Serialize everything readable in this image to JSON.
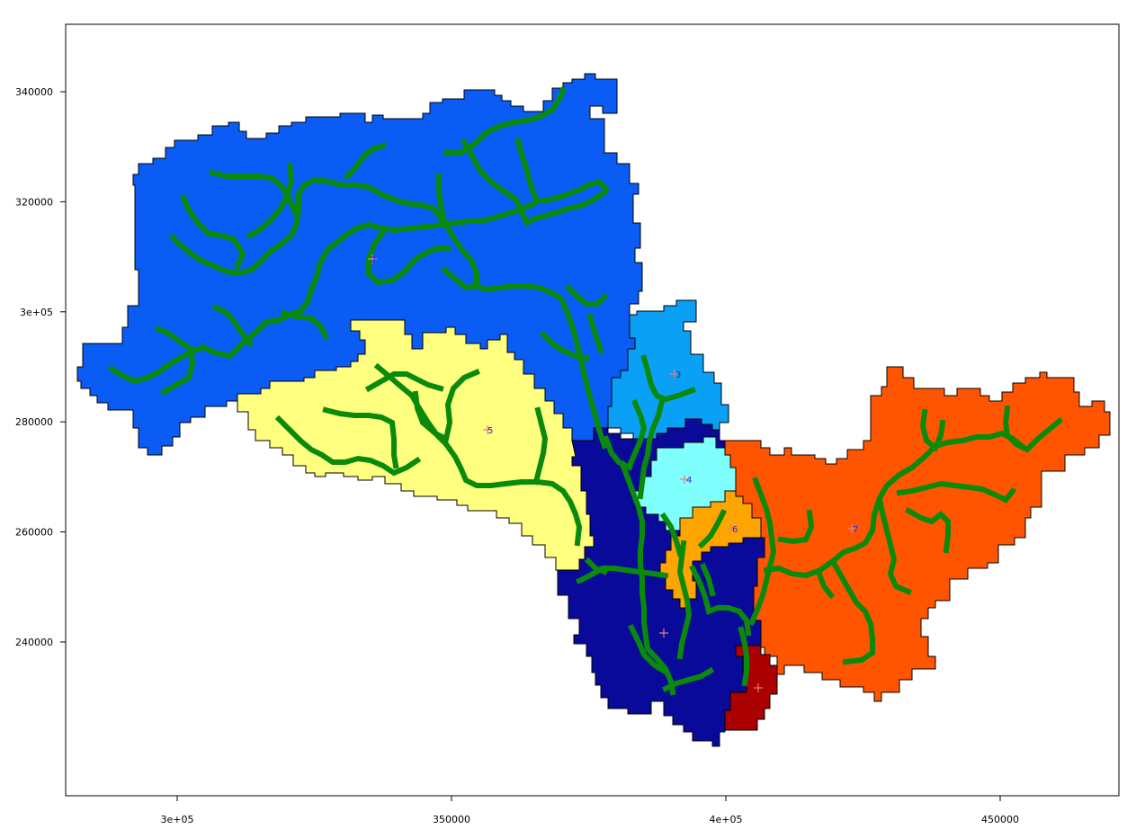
{
  "map": {
    "x_ticks": [
      "3e+05",
      "350000",
      "4e+05",
      "450000"
    ],
    "y_ticks": [
      "340000",
      "320000",
      "3e+05",
      "280000",
      "260000",
      "240000"
    ],
    "x_tick_values": [
      300000,
      350000,
      400000,
      450000
    ],
    "y_tick_values": [
      340000,
      320000,
      300000,
      280000,
      260000,
      240000
    ],
    "xlim": [
      280000,
      455000
    ],
    "ylim": [
      218000,
      352000
    ],
    "river_color": "#0a8a0a",
    "marker_color": "#e88080",
    "label_color": "#2a2ad8"
  },
  "basins": [
    {
      "id": "2",
      "label": "2",
      "color": "#0a5cf5"
    },
    {
      "id": "5",
      "label": "5",
      "color": "#ffff80"
    },
    {
      "id": "3",
      "label": "3",
      "color": "#0aa0f5"
    },
    {
      "id": "4",
      "label": "4",
      "color": "#80ffff"
    },
    {
      "id": "1",
      "label": "",
      "color": "#0a0a9a"
    },
    {
      "id": "6",
      "label": "6",
      "color": "#ffa500"
    },
    {
      "id": "7",
      "label": "7",
      "color": "#ff5500"
    },
    {
      "id": "8",
      "label": "",
      "color": "#aa0000"
    }
  ]
}
